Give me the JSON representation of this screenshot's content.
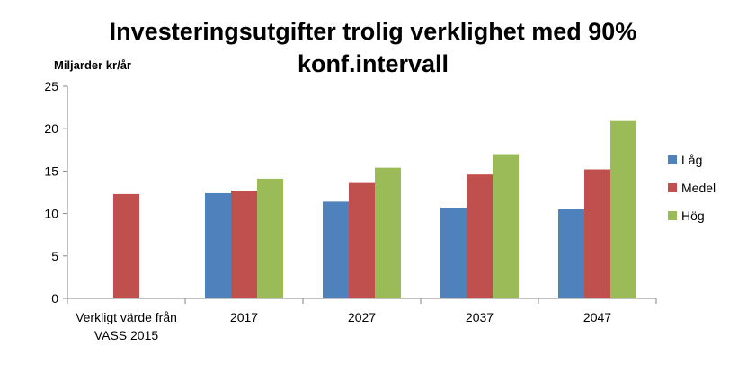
{
  "chart_data": {
    "type": "bar",
    "title": "Investeringsutgifter trolig verklighet med 90% konf.intervall",
    "title_lines": [
      "Investeringsutgifter trolig verklighet med 90%",
      "konf.intervall"
    ],
    "ylabel": "Miljarder kr/år",
    "xlabel": "",
    "ylim": [
      0,
      25
    ],
    "yticks": [
      0,
      5,
      10,
      15,
      20,
      25
    ],
    "ytick_labels": [
      "0",
      "5",
      "10",
      "15",
      "20",
      "25"
    ],
    "grid": false,
    "legend_position": "right",
    "categories": [
      "Verkligt värde från VASS 2015",
      "2017",
      "2027",
      "2037",
      "2047"
    ],
    "category_lines": [
      [
        "Verkligt värde från",
        "VASS 2015"
      ],
      [
        "2017"
      ],
      [
        "2027"
      ],
      [
        "2037"
      ],
      [
        "2047"
      ]
    ],
    "series": [
      {
        "name": "Låg",
        "color": "#4F81BD",
        "values": [
          null,
          12.4,
          11.4,
          10.7,
          10.5
        ]
      },
      {
        "name": "Medel",
        "color": "#C0504D",
        "values": [
          12.3,
          12.7,
          13.6,
          14.6,
          15.2
        ]
      },
      {
        "name": "Hög",
        "color": "#9BBB59",
        "values": [
          null,
          14.1,
          15.4,
          17.0,
          20.9
        ]
      }
    ]
  }
}
